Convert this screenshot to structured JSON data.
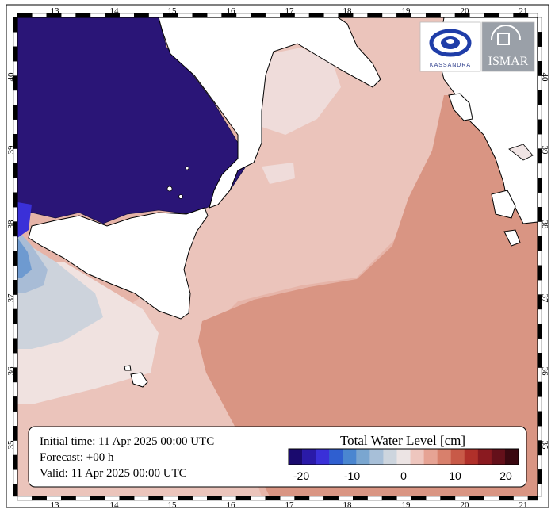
{
  "axes": {
    "lon_ticks": [
      "13",
      "14",
      "15",
      "16",
      "17",
      "18",
      "19",
      "20",
      "21"
    ],
    "lat_ticks": [
      "40",
      "39",
      "38",
      "37",
      "36",
      "35"
    ]
  },
  "info": {
    "initial_time": "Initial time: 11 Apr 2025 00:00 UTC",
    "forecast": "Forecast: +00 h",
    "valid": "Valid: 11 Apr 2025 00:00 UTC"
  },
  "legend": {
    "title": "Total Water Level [cm]",
    "tick_labels": [
      "-20",
      "-10",
      "0",
      "10",
      "20"
    ],
    "colors": [
      "#1a0a6e",
      "#2a1aa8",
      "#3a30d8",
      "#2f5fd0",
      "#4a86d0",
      "#7aa6d0",
      "#a7bfd8",
      "#cdd5de",
      "#ece4e4",
      "#eec6be",
      "#e6a394",
      "#d8806c",
      "#c85a48",
      "#b0302a",
      "#8a1a20",
      "#64101a",
      "#3a0810"
    ]
  },
  "logos": {
    "left_text": "KASSANDRA",
    "right_text": "ISMAR"
  },
  "colors": {
    "land": "#ffffff",
    "deep_low": "#2a1577",
    "sea_base": "#e8b8ab",
    "sea_mid": "#d98f7e",
    "sea_light": "#eacfc8",
    "sea_pale": "#f1e4e2"
  }
}
